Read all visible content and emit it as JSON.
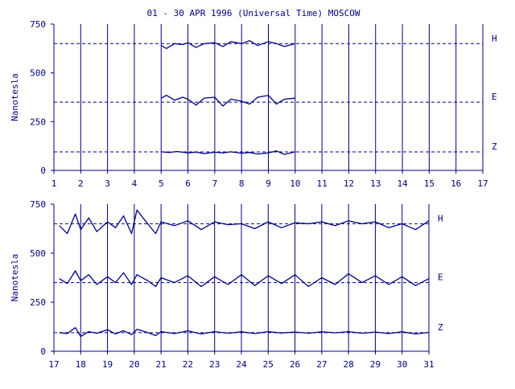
{
  "colors": {
    "ink": "#000080",
    "background": "#ffffff"
  },
  "title": "01 - 30 APR 1996 (Universal Time) MOSCOW",
  "chart_data": [
    {
      "type": "line",
      "panel": "top",
      "xlabel": "",
      "ylabel": "Nanotesla",
      "xlim": [
        1,
        17
      ],
      "ylim": [
        0,
        750
      ],
      "x_ticks": [
        "1",
        "2",
        "3",
        "4",
        "5",
        "6",
        "7",
        "8",
        "9",
        "10",
        "11",
        "12",
        "13",
        "14",
        "15",
        "16",
        "17"
      ],
      "y_ticks": [
        "0",
        "250",
        "500",
        "750"
      ],
      "grid": "vertical lines at each day",
      "baselines": [
        {
          "label": "H",
          "value": 650
        },
        {
          "label": "E",
          "value": 350
        },
        {
          "label": "Z",
          "value": 95
        }
      ],
      "series": [
        {
          "name": "H",
          "x": [
            5.0,
            5.2,
            5.5,
            5.8,
            6.0,
            6.3,
            6.6,
            7.0,
            7.3,
            7.6,
            8.0,
            8.3,
            8.6,
            9.0,
            9.3,
            9.6,
            10.0
          ],
          "y": [
            640,
            625,
            650,
            645,
            655,
            630,
            650,
            655,
            635,
            660,
            650,
            665,
            640,
            660,
            650,
            635,
            650
          ]
        },
        {
          "name": "E",
          "x": [
            5.0,
            5.2,
            5.5,
            5.8,
            6.0,
            6.3,
            6.6,
            7.0,
            7.3,
            7.6,
            8.0,
            8.3,
            8.6,
            9.0,
            9.3,
            9.6,
            10.0
          ],
          "y": [
            370,
            385,
            360,
            375,
            365,
            335,
            370,
            375,
            330,
            365,
            355,
            340,
            375,
            385,
            340,
            365,
            370
          ]
        },
        {
          "name": "Z",
          "x": [
            5.0,
            5.3,
            5.6,
            6.0,
            6.3,
            6.6,
            7.0,
            7.3,
            7.6,
            8.0,
            8.3,
            8.6,
            9.0,
            9.3,
            9.6,
            10.0
          ],
          "y": [
            95,
            92,
            97,
            90,
            94,
            86,
            93,
            90,
            95,
            88,
            92,
            84,
            90,
            100,
            82,
            95
          ]
        }
      ]
    },
    {
      "type": "line",
      "panel": "bottom",
      "xlabel": "",
      "ylabel": "Nanotesla",
      "xlim": [
        17,
        31
      ],
      "ylim": [
        0,
        750
      ],
      "x_ticks": [
        "17",
        "18",
        "19",
        "20",
        "21",
        "22",
        "23",
        "24",
        "25",
        "26",
        "27",
        "28",
        "29",
        "30",
        "31"
      ],
      "y_ticks": [
        "0",
        "250",
        "500",
        "750"
      ],
      "grid": "vertical lines at each day",
      "baselines": [
        {
          "label": "H",
          "value": 650
        },
        {
          "label": "E",
          "value": 350
        },
        {
          "label": "Z",
          "value": 95
        }
      ],
      "series": [
        {
          "name": "H",
          "x": [
            17.2,
            17.5,
            17.8,
            18.0,
            18.3,
            18.6,
            19.0,
            19.3,
            19.6,
            19.9,
            20.1,
            20.5,
            20.8,
            21.0,
            21.5,
            22.0,
            22.5,
            23.0,
            23.5,
            24.0,
            24.5,
            25.0,
            25.5,
            26.0,
            26.5,
            27.0,
            27.5,
            28.0,
            28.5,
            29.0,
            29.5,
            30.0,
            30.5,
            31.0
          ],
          "y": [
            640,
            600,
            700,
            620,
            680,
            610,
            660,
            630,
            690,
            600,
            720,
            650,
            600,
            660,
            640,
            665,
            620,
            660,
            645,
            650,
            625,
            660,
            630,
            655,
            650,
            660,
            640,
            665,
            650,
            660,
            630,
            650,
            620,
            665
          ]
        },
        {
          "name": "E",
          "x": [
            17.2,
            17.5,
            17.8,
            18.0,
            18.3,
            18.6,
            19.0,
            19.3,
            19.6,
            19.9,
            20.1,
            20.5,
            20.8,
            21.0,
            21.5,
            22.0,
            22.5,
            23.0,
            23.5,
            24.0,
            24.5,
            25.0,
            25.5,
            26.0,
            26.5,
            27.0,
            27.5,
            28.0,
            28.5,
            29.0,
            29.5,
            30.0,
            30.5,
            31.0
          ],
          "y": [
            370,
            345,
            410,
            360,
            390,
            340,
            380,
            350,
            400,
            340,
            390,
            360,
            330,
            375,
            350,
            385,
            330,
            380,
            340,
            390,
            335,
            385,
            345,
            390,
            330,
            375,
            340,
            395,
            350,
            385,
            340,
            380,
            335,
            370
          ]
        },
        {
          "name": "Z",
          "x": [
            17.2,
            17.5,
            17.8,
            18.0,
            18.3,
            18.6,
            19.0,
            19.3,
            19.6,
            19.9,
            20.1,
            20.5,
            20.8,
            21.0,
            21.5,
            22.0,
            22.5,
            23.0,
            23.5,
            24.0,
            24.5,
            25.0,
            25.5,
            26.0,
            26.5,
            27.0,
            27.5,
            28.0,
            28.5,
            29.0,
            29.5,
            30.0,
            30.5,
            31.0
          ],
          "y": [
            95,
            90,
            120,
            75,
            100,
            92,
            110,
            88,
            105,
            85,
            112,
            95,
            80,
            100,
            90,
            104,
            88,
            100,
            92,
            99,
            90,
            100,
            93,
            98,
            92,
            99,
            94,
            100,
            92,
            98,
            90,
            99,
            88,
            96
          ]
        }
      ]
    }
  ]
}
